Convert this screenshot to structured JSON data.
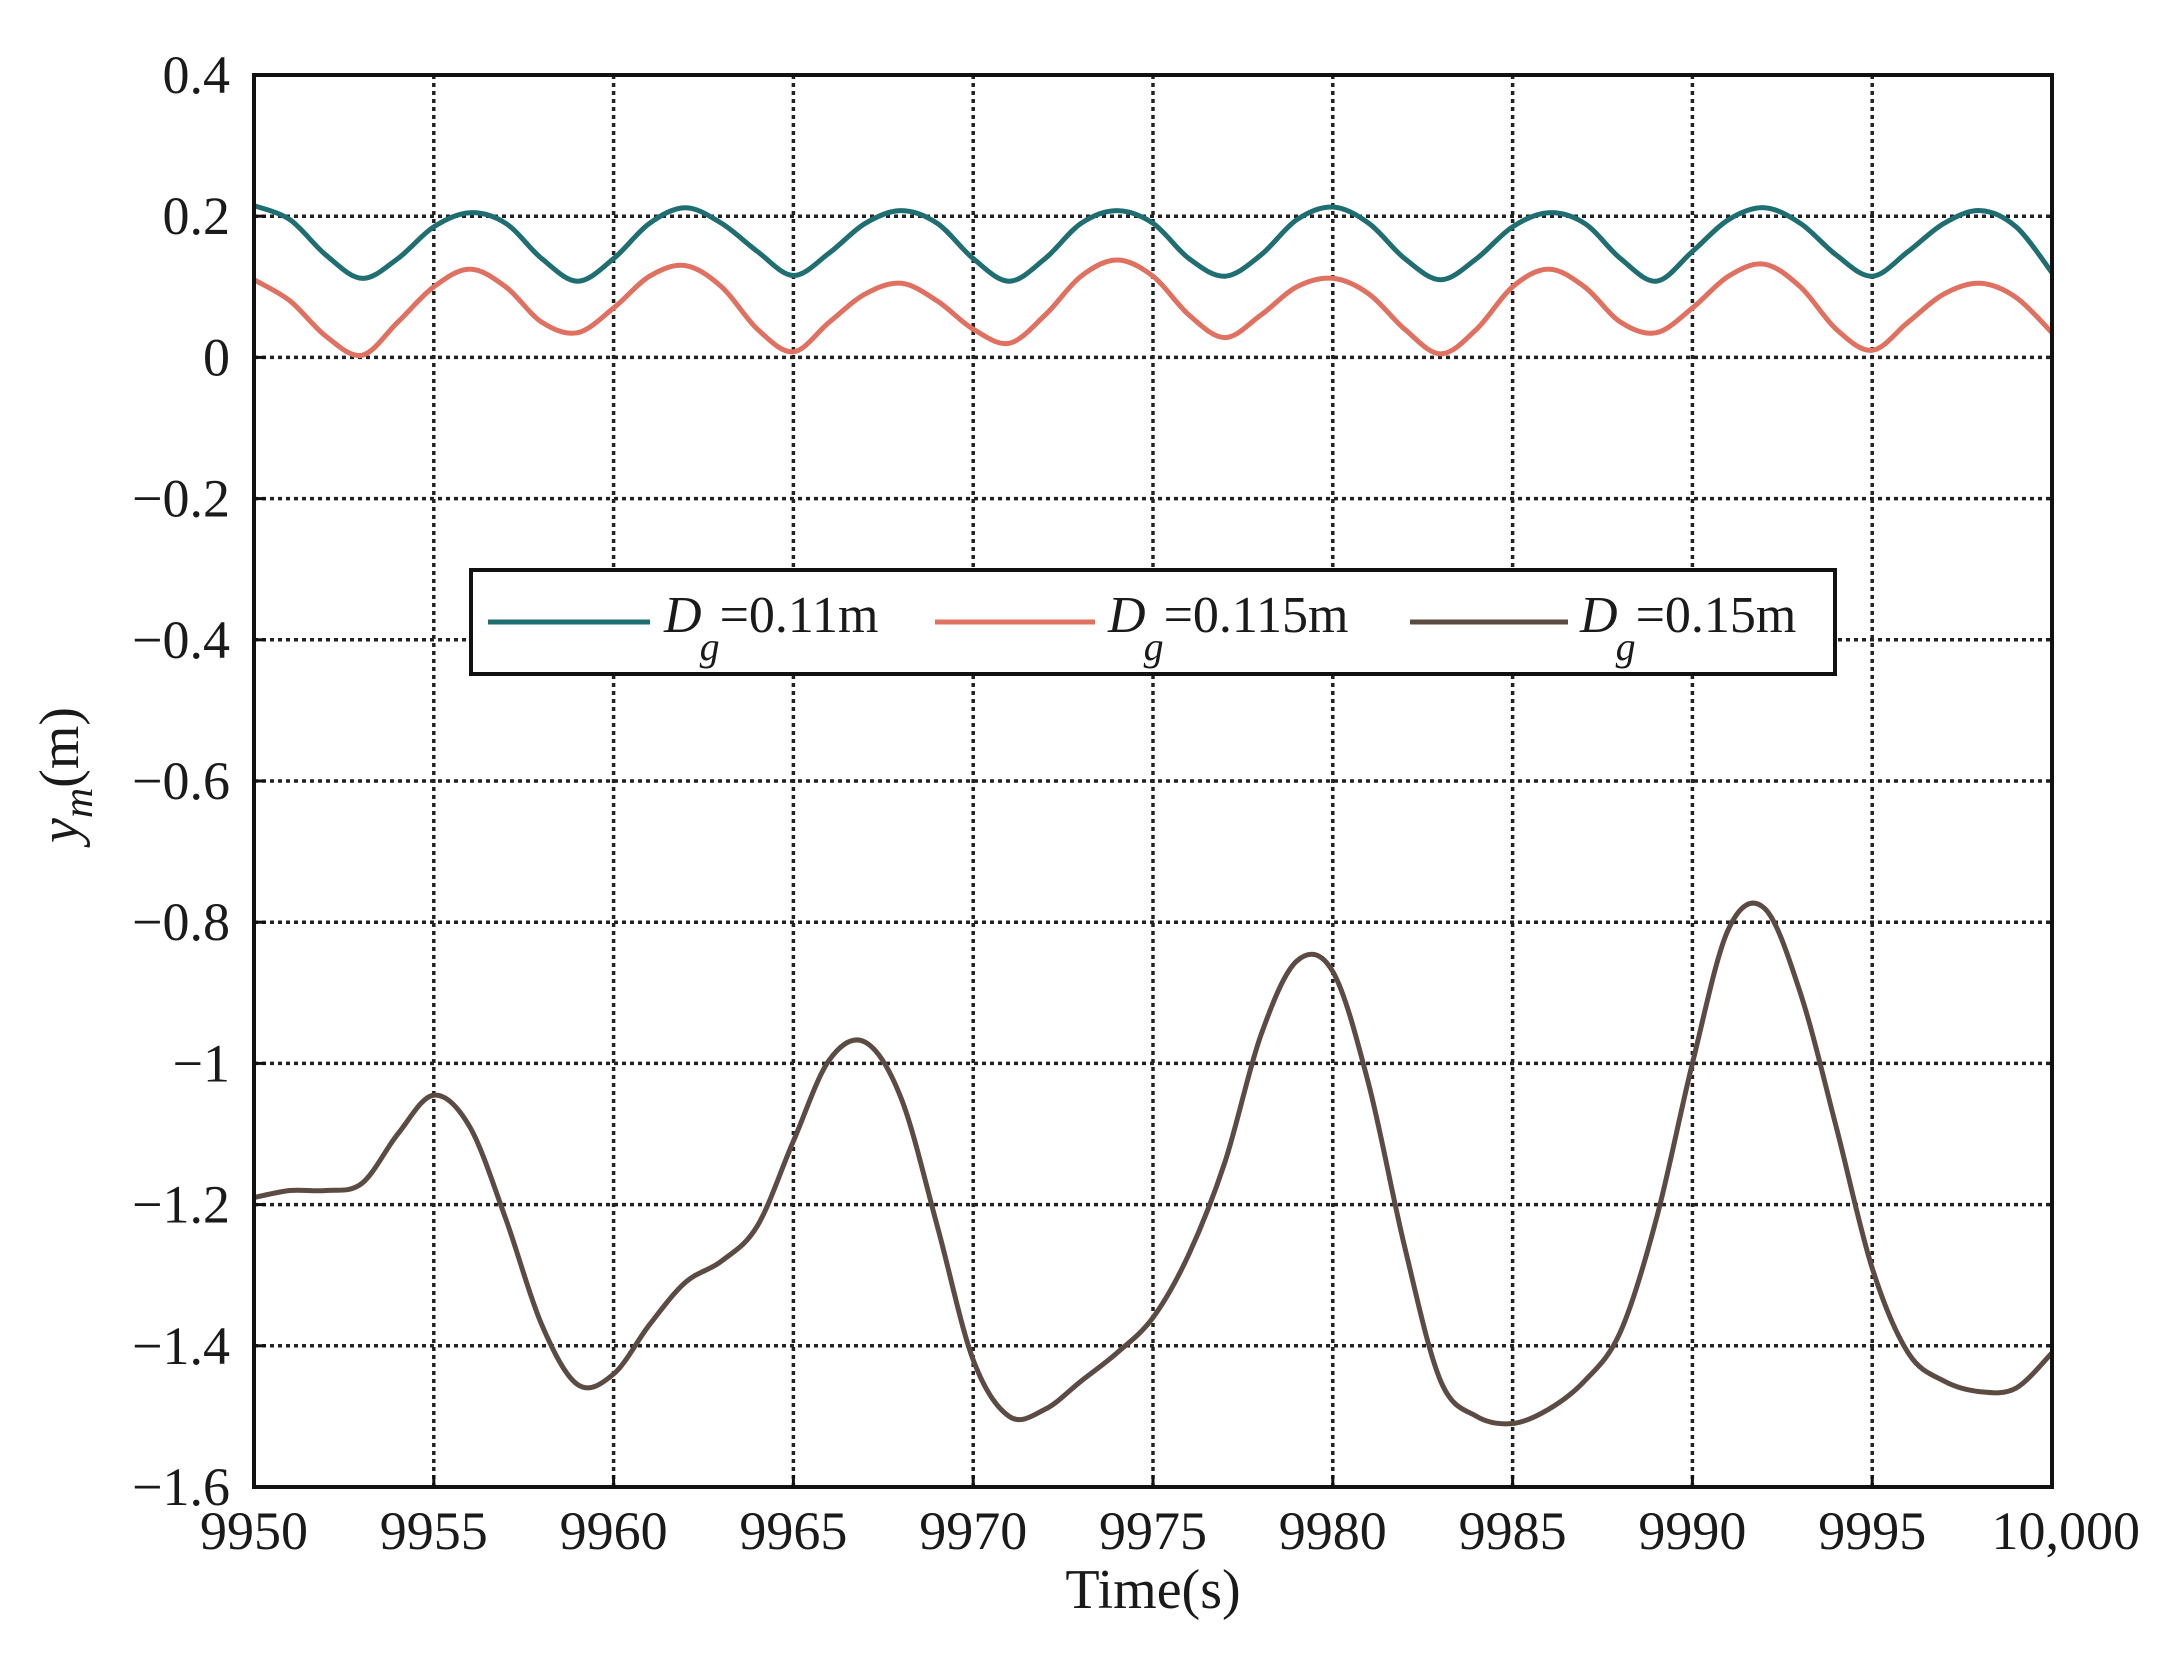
{
  "chart_data": {
    "type": "line",
    "xlabel": "Time(s)",
    "ylabel": {
      "symbol": "y",
      "subscript": "m",
      "unit": "(m)"
    },
    "xlim": [
      9950,
      10000
    ],
    "ylim": [
      -1.6,
      0.4
    ],
    "xticks": [
      9950,
      9955,
      9960,
      9965,
      9970,
      9975,
      9980,
      9985,
      9990,
      9995,
      10000
    ],
    "xtick_labels": [
      "9950",
      "9955",
      "9960",
      "9965",
      "9970",
      "9975",
      "9980",
      "9985",
      "9990",
      "9995",
      "10,000"
    ],
    "yticks": [
      0.4,
      0.2,
      0,
      -0.2,
      -0.4,
      -0.6,
      -0.8,
      -1,
      -1.2,
      -1.4,
      -1.6
    ],
    "ytick_labels": [
      "0.4",
      "0.2",
      "0",
      "−0.2",
      "−0.4",
      "−0.6",
      "−0.8",
      "−1",
      "−1.2",
      "−1.4",
      "−1.6"
    ],
    "grid": true,
    "legend_position": "center",
    "series": [
      {
        "name": "Dg=0.11m",
        "label_symbol": "D",
        "label_subscript": "g",
        "label_value": "=0.11m",
        "color": "#1e6e72",
        "x": [
          9950,
          9951,
          9952,
          9953,
          9954,
          9955,
          9956,
          9957,
          9958,
          9959,
          9960,
          9961,
          9962,
          9963,
          9964,
          9965,
          9966,
          9967,
          9968,
          9969,
          9970,
          9971,
          9972,
          9973,
          9974,
          9975,
          9976,
          9977,
          9978,
          9979,
          9980,
          9981,
          9982,
          9983,
          9984,
          9985,
          9986,
          9987,
          9988,
          9989,
          9990,
          9991,
          9992,
          9993,
          9994,
          9995,
          9996,
          9997,
          9998,
          9999,
          10000
        ],
        "y": [
          0.215,
          0.195,
          0.145,
          0.112,
          0.14,
          0.185,
          0.205,
          0.19,
          0.14,
          0.108,
          0.14,
          0.19,
          0.212,
          0.19,
          0.15,
          0.116,
          0.148,
          0.19,
          0.208,
          0.19,
          0.14,
          0.108,
          0.14,
          0.19,
          0.208,
          0.19,
          0.14,
          0.115,
          0.145,
          0.195,
          0.213,
          0.19,
          0.14,
          0.11,
          0.14,
          0.185,
          0.205,
          0.19,
          0.14,
          0.108,
          0.15,
          0.195,
          0.212,
          0.19,
          0.145,
          0.115,
          0.15,
          0.19,
          0.208,
          0.185,
          0.12
        ]
      },
      {
        "name": "Dg=0.115m",
        "label_symbol": "D",
        "label_subscript": "g",
        "label_value": "=0.115m",
        "color": "#e07060",
        "x": [
          9950,
          9951,
          9952,
          9953,
          9954,
          9955,
          9956,
          9957,
          9958,
          9959,
          9960,
          9961,
          9962,
          9963,
          9964,
          9965,
          9966,
          9967,
          9968,
          9969,
          9970,
          9971,
          9972,
          9973,
          9974,
          9975,
          9976,
          9977,
          9978,
          9979,
          9980,
          9981,
          9982,
          9983,
          9984,
          9985,
          9986,
          9987,
          9988,
          9989,
          9990,
          9991,
          9992,
          9993,
          9994,
          9995,
          9996,
          9997,
          9998,
          9999,
          10000
        ],
        "y": [
          0.11,
          0.08,
          0.03,
          0.003,
          0.05,
          0.1,
          0.125,
          0.1,
          0.05,
          0.035,
          0.07,
          0.115,
          0.13,
          0.1,
          0.04,
          0.008,
          0.05,
          0.09,
          0.105,
          0.08,
          0.04,
          0.02,
          0.06,
          0.115,
          0.138,
          0.115,
          0.06,
          0.028,
          0.06,
          0.1,
          0.112,
          0.09,
          0.04,
          0.005,
          0.04,
          0.1,
          0.125,
          0.1,
          0.05,
          0.035,
          0.07,
          0.115,
          0.132,
          0.1,
          0.04,
          0.01,
          0.05,
          0.09,
          0.105,
          0.085,
          0.035
        ]
      },
      {
        "name": "Dg=0.15m",
        "label_symbol": "D",
        "label_subscript": "g",
        "label_value": "=0.15m",
        "color": "#5c4b43",
        "x": [
          9950,
          9951,
          9952,
          9953,
          9954,
          9955,
          9956,
          9957,
          9958,
          9959,
          9960,
          9961,
          9962,
          9963,
          9964,
          9965,
          9966,
          9967,
          9968,
          9969,
          9970,
          9971,
          9972,
          9973,
          9974,
          9975,
          9976,
          9977,
          9978,
          9979,
          9980,
          9981,
          9982,
          9983,
          9984,
          9985,
          9986,
          9987,
          9988,
          9989,
          9990,
          9991,
          9992,
          9993,
          9994,
          9995,
          9996,
          9997,
          9998,
          9999,
          10000
        ],
        "y": [
          -1.19,
          -1.18,
          -1.18,
          -1.17,
          -1.1,
          -1.045,
          -1.09,
          -1.22,
          -1.37,
          -1.455,
          -1.44,
          -1.37,
          -1.31,
          -1.28,
          -1.23,
          -1.11,
          -0.995,
          -0.97,
          -1.05,
          -1.23,
          -1.42,
          -1.5,
          -1.49,
          -1.45,
          -1.41,
          -1.36,
          -1.27,
          -1.14,
          -0.96,
          -0.855,
          -0.87,
          -1.03,
          -1.26,
          -1.45,
          -1.5,
          -1.51,
          -1.49,
          -1.45,
          -1.38,
          -1.22,
          -1.0,
          -0.81,
          -0.78,
          -0.9,
          -1.09,
          -1.29,
          -1.41,
          -1.45,
          -1.465,
          -1.46,
          -1.41
        ]
      }
    ]
  }
}
